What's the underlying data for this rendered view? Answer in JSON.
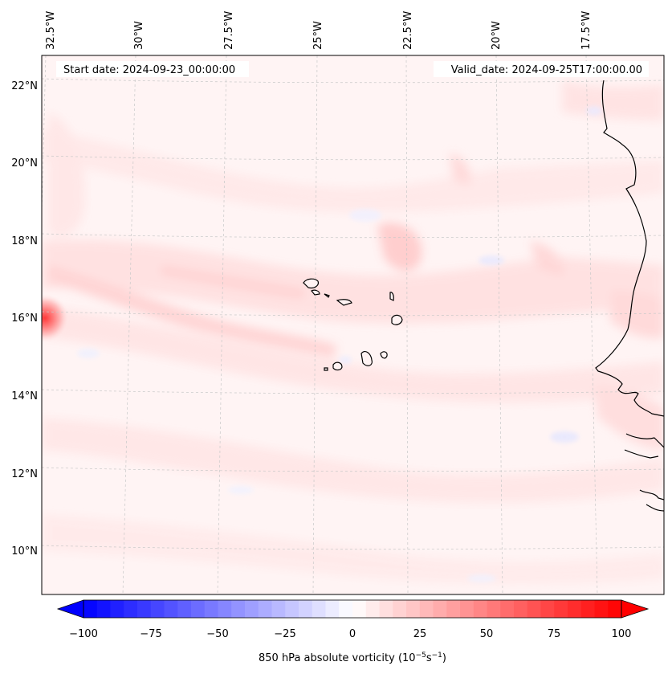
{
  "header": {
    "start_date": "Start date: 2024-09-23_00:00:00",
    "valid_date": "Valid_date: 2024-09-25T17:00:00.00"
  },
  "longitude_labels": [
    "32.5°W",
    "30°W",
    "27.5°W",
    "25°W",
    "22.5°W",
    "20°W",
    "17.5°W"
  ],
  "latitude_labels": [
    "22°N",
    "20°N",
    "18°N",
    "16°N",
    "14°N",
    "12°N",
    "10°N"
  ],
  "colorbar": {
    "ticks": [
      "−100",
      "−75",
      "−50",
      "−25",
      "0",
      "25",
      "50",
      "75",
      "100"
    ],
    "label": "850 hPa absolute vorticity (10",
    "label_unit1": "−5",
    "label_mid": "s",
    "label_unit2": "−1",
    "label_end": ")",
    "min": -100,
    "max": 100,
    "step": 5,
    "low_color": "#0000ff",
    "mid_color": "#ffffff",
    "high_color": "#ff0000"
  },
  "map": {
    "projection": "conic",
    "gridlines": true,
    "field_range": "mostly 0 to 20, local maximum near 16°N 33°W"
  }
}
